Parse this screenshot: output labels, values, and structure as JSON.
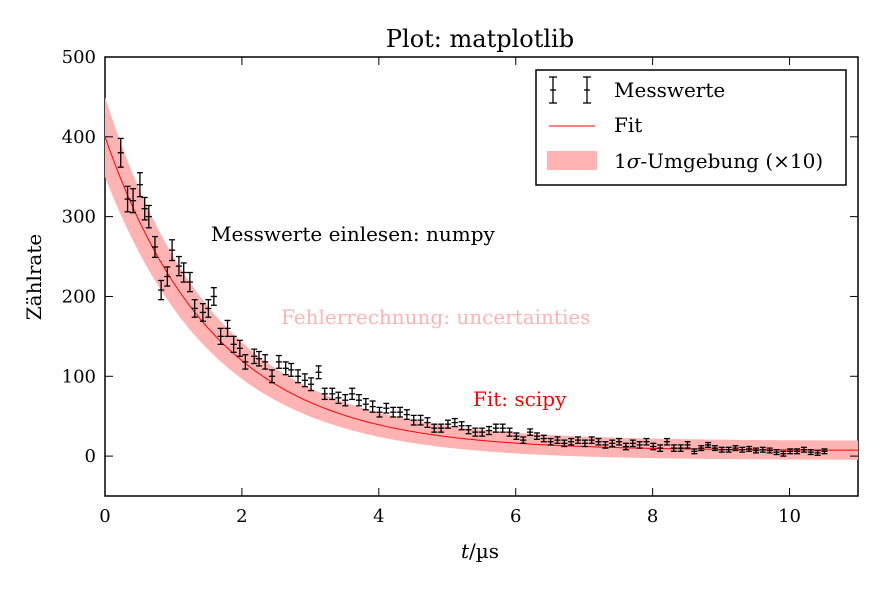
{
  "chart_data": {
    "type": "scatter",
    "title": "Plot: matplotlib",
    "xlabel_var": "t",
    "xlabel_unit": "/µs",
    "ylabel": "Zählrate",
    "xlim": [
      0,
      11
    ],
    "ylim": [
      -50,
      500
    ],
    "xticks": [
      0,
      2,
      4,
      6,
      8,
      10
    ],
    "yticks": [
      0,
      100,
      200,
      300,
      400,
      500
    ],
    "grid": false,
    "legend_position": "top-right",
    "legend": {
      "measurements": "Messwerte",
      "fit": "Fit",
      "band_prefix": "1",
      "band_sigma": "σ",
      "band_suffix": "-Umgebung (×10)"
    },
    "annotations": {
      "numpy": "Messwerte einlesen: numpy",
      "uncertainties": "Fehlerrechnung: uncertainties",
      "scipy": "Fit: scipy"
    },
    "colors": {
      "fit": "#ff0000",
      "band": "#ffb3b3",
      "data": "#000000",
      "annotation_uncertainties": "#ffb3b3",
      "annotation_scipy": "#ff0000"
    },
    "fit": {
      "model": "A*exp(-t/tau)+C",
      "A": 393,
      "tau": 1.6,
      "C": 7,
      "band_halfwidth_t0": 50,
      "band_halfwidth_tail": 12,
      "x_range": [
        0,
        11
      ]
    },
    "measurements": {
      "x": [
        0.23,
        0.33,
        0.41,
        0.51,
        0.58,
        0.64,
        0.73,
        0.82,
        0.91,
        0.98,
        1.08,
        1.15,
        1.24,
        1.31,
        1.43,
        1.51,
        1.59,
        1.69,
        1.79,
        1.88,
        1.97,
        2.05,
        2.18,
        2.25,
        2.34,
        2.44,
        2.54,
        2.64,
        2.72,
        2.82,
        2.92,
        3.01,
        3.12,
        3.21,
        3.32,
        3.41,
        3.51,
        3.61,
        3.71,
        3.81,
        3.91,
        4.01,
        4.11,
        4.21,
        4.31,
        4.41,
        4.51,
        4.61,
        4.71,
        4.81,
        4.91,
        5.01,
        5.11,
        5.21,
        5.31,
        5.41,
        5.51,
        5.61,
        5.71,
        5.81,
        5.91,
        6.01,
        6.11,
        6.21,
        6.31,
        6.41,
        6.51,
        6.61,
        6.71,
        6.81,
        6.91,
        7.01,
        7.11,
        7.21,
        7.31,
        7.41,
        7.51,
        7.61,
        7.71,
        7.81,
        7.91,
        8.01,
        8.11,
        8.21,
        8.31,
        8.41,
        8.51,
        8.61,
        8.71,
        8.81,
        8.91,
        9.01,
        9.11,
        9.21,
        9.31,
        9.41,
        9.51,
        9.61,
        9.71,
        9.81,
        9.91,
        10.01,
        10.11,
        10.21,
        10.31,
        10.41,
        10.51
      ],
      "y": [
        380,
        322,
        320,
        340,
        310,
        300,
        262,
        208,
        225,
        258,
        238,
        230,
        218,
        185,
        180,
        185,
        200,
        150,
        160,
        140,
        135,
        118,
        125,
        122,
        118,
        100,
        118,
        110,
        108,
        100,
        95,
        90,
        105,
        78,
        78,
        73,
        70,
        78,
        70,
        65,
        62,
        55,
        60,
        55,
        55,
        52,
        45,
        45,
        42,
        35,
        35,
        40,
        42,
        38,
        33,
        30,
        30,
        32,
        35,
        35,
        30,
        25,
        20,
        30,
        25,
        22,
        18,
        20,
        16,
        18,
        20,
        16,
        20,
        18,
        14,
        16,
        18,
        12,
        16,
        14,
        18,
        12,
        10,
        18,
        10,
        10,
        14,
        6,
        10,
        14,
        10,
        8,
        8,
        10,
        8,
        9,
        7,
        8,
        7,
        5,
        3,
        6,
        6,
        8,
        5,
        4,
        6
      ],
      "yerr": [
        18,
        16,
        15,
        15,
        14,
        14,
        13,
        12,
        12,
        13,
        12,
        12,
        12,
        11,
        11,
        11,
        11,
        10,
        10,
        10,
        10,
        9,
        9,
        9,
        9,
        8,
        8,
        8,
        8,
        8,
        8,
        8,
        8,
        7,
        7,
        7,
        7,
        7,
        7,
        7,
        7,
        6,
        6,
        6,
        6,
        6,
        6,
        6,
        6,
        5,
        5,
        5,
        5,
        5,
        5,
        5,
        5,
        5,
        5,
        5,
        5,
        4,
        4,
        4,
        4,
        4,
        4,
        4,
        4,
        4,
        4,
        4,
        4,
        4,
        4,
        4,
        4,
        4,
        4,
        4,
        4,
        4,
        4,
        4,
        4,
        4,
        4,
        3,
        3,
        3,
        3,
        3,
        3,
        3,
        3,
        3,
        3,
        3,
        3,
        3,
        3,
        3,
        3,
        3,
        3,
        3,
        3
      ],
      "xerr": 0.045
    }
  }
}
